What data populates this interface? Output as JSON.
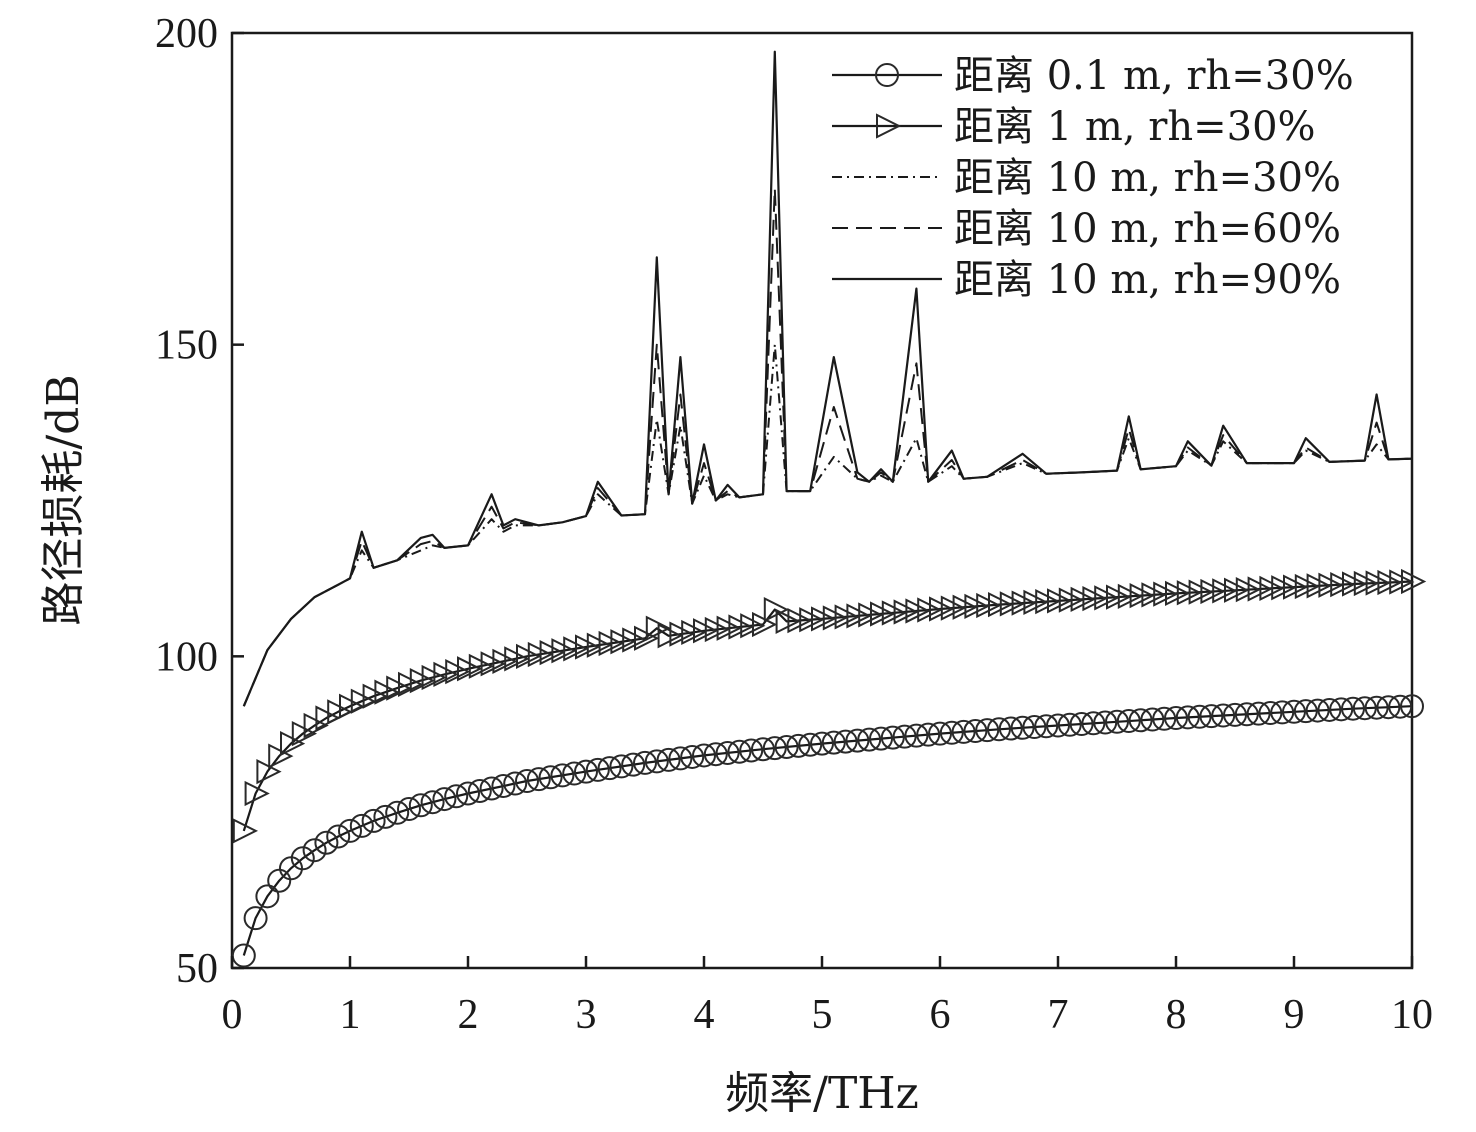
{
  "chart_data": {
    "type": "line",
    "title": "",
    "xlabel": "频率/THz",
    "ylabel": "路径损耗/dB",
    "xlim": [
      0,
      10
    ],
    "ylim": [
      50,
      200
    ],
    "xticks": [
      0,
      1,
      2,
      3,
      4,
      5,
      6,
      7,
      8,
      9,
      10
    ],
    "yticks": [
      50,
      100,
      150,
      200
    ],
    "grid": false,
    "legend_position": "top-right",
    "series": [
      {
        "name": "距离 0.1 m, rh=30%",
        "style": "solid-circle-markers",
        "x": [
          0.1,
          0.2,
          0.3,
          0.4,
          0.5,
          0.6,
          0.7,
          0.8,
          0.9,
          1.0,
          1.2,
          1.4,
          1.6,
          1.8,
          2.0,
          2.5,
          3.0,
          3.5,
          4.0,
          4.5,
          5.0,
          5.5,
          6.0,
          6.5,
          7.0,
          7.5,
          8.0,
          8.5,
          9.0,
          9.5,
          10.0
        ],
        "y": [
          52.0,
          58.0,
          61.5,
          64.0,
          66.0,
          67.6,
          68.9,
          70.1,
          71.1,
          72.0,
          73.6,
          74.9,
          76.1,
          77.1,
          78.0,
          80.0,
          81.5,
          82.9,
          84.1,
          85.1,
          86.0,
          86.8,
          87.6,
          88.3,
          88.9,
          89.5,
          90.1,
          90.6,
          91.1,
          91.6,
          92.0
        ]
      },
      {
        "name": "距离 1 m, rh=30%",
        "style": "solid-triangle-markers",
        "x": [
          0.1,
          0.2,
          0.3,
          0.4,
          0.5,
          0.6,
          0.7,
          0.8,
          0.9,
          1.0,
          1.2,
          1.4,
          1.6,
          1.8,
          2.0,
          2.5,
          3.0,
          3.5,
          3.6,
          3.7,
          4.0,
          4.5,
          4.6,
          4.7,
          5.0,
          5.5,
          6.0,
          6.5,
          7.0,
          7.5,
          8.0,
          8.5,
          9.0,
          9.5,
          10.0
        ],
        "y": [
          72.0,
          78.0,
          81.5,
          84.0,
          86.0,
          87.6,
          88.9,
          90.1,
          91.1,
          92.0,
          93.6,
          94.9,
          96.1,
          97.1,
          98.0,
          100.0,
          101.5,
          102.9,
          104.5,
          103.3,
          104.1,
          105.1,
          107.5,
          105.6,
          106.0,
          106.8,
          107.6,
          108.3,
          108.9,
          109.5,
          110.1,
          110.6,
          111.1,
          111.6,
          112.0
        ]
      },
      {
        "name": "距离 10 m, rh=30%",
        "style": "dash-dot",
        "x": [
          0.1,
          0.3,
          0.5,
          0.7,
          0.9,
          1.0,
          1.1,
          1.2,
          1.4,
          1.6,
          1.7,
          1.8,
          2.0,
          2.2,
          2.3,
          2.4,
          2.6,
          2.8,
          3.0,
          3.1,
          3.3,
          3.5,
          3.6,
          3.7,
          3.8,
          3.9,
          4.0,
          4.1,
          4.2,
          4.3,
          4.5,
          4.6,
          4.7,
          4.9,
          5.1,
          5.3,
          5.4,
          5.5,
          5.6,
          5.8,
          5.9,
          6.1,
          6.2,
          6.4,
          6.7,
          6.9,
          7.2,
          7.5,
          7.6,
          7.7,
          8.0,
          8.1,
          8.3,
          8.4,
          8.6,
          9.0,
          9.1,
          9.3,
          9.6,
          9.7,
          9.8,
          10.0
        ],
        "y": [
          92,
          101,
          106,
          109.5,
          111.5,
          112.5,
          117,
          114.2,
          115.4,
          117,
          117.8,
          117.4,
          117.8,
          122,
          120,
          121,
          121,
          121.5,
          122.5,
          126,
          122.6,
          122.8,
          138,
          126,
          137,
          124.5,
          129,
          125,
          126,
          125.5,
          126,
          150,
          126.5,
          126.5,
          132,
          128.5,
          128,
          129,
          128,
          135,
          128,
          130.5,
          128.5,
          128.8,
          131,
          129.3,
          129.5,
          129.8,
          135,
          130,
          130.5,
          133,
          130.6,
          134.5,
          131,
          131,
          133,
          131.2,
          131.4,
          134,
          131.6,
          131.7
        ]
      },
      {
        "name": "距离 10 m, rh=60%",
        "style": "dashed",
        "x": [
          0.1,
          0.3,
          0.5,
          0.7,
          0.9,
          1.0,
          1.1,
          1.2,
          1.4,
          1.6,
          1.7,
          1.8,
          2.0,
          2.2,
          2.3,
          2.4,
          2.6,
          2.8,
          3.0,
          3.1,
          3.3,
          3.5,
          3.6,
          3.7,
          3.8,
          3.9,
          4.0,
          4.1,
          4.2,
          4.3,
          4.5,
          4.6,
          4.7,
          4.9,
          5.1,
          5.3,
          5.4,
          5.5,
          5.6,
          5.8,
          5.9,
          6.1,
          6.2,
          6.4,
          6.7,
          6.9,
          7.2,
          7.5,
          7.6,
          7.7,
          8.0,
          8.1,
          8.3,
          8.4,
          8.6,
          9.0,
          9.1,
          9.3,
          9.6,
          9.7,
          9.8,
          10.0
        ],
        "y": [
          92,
          101,
          106,
          109.5,
          111.5,
          112.5,
          118.5,
          114.2,
          115.4,
          118,
          118.5,
          117.4,
          117.8,
          124,
          120.5,
          121.5,
          121,
          121.5,
          122.5,
          127,
          122.6,
          122.8,
          150,
          126,
          142,
          124.5,
          131,
          125,
          126.5,
          125.5,
          126,
          175,
          126.5,
          126.5,
          140,
          128.5,
          128,
          129.5,
          128,
          147,
          128,
          131.5,
          128.5,
          128.8,
          131.5,
          129.3,
          129.5,
          129.8,
          136.5,
          130,
          130.5,
          133.5,
          130.6,
          135.5,
          131,
          131,
          133.5,
          131.2,
          131.4,
          137.5,
          131.6,
          131.7
        ]
      },
      {
        "name": "距离 10 m, rh=90%",
        "style": "solid",
        "x": [
          0.1,
          0.3,
          0.5,
          0.7,
          0.9,
          1.0,
          1.1,
          1.2,
          1.4,
          1.6,
          1.7,
          1.8,
          2.0,
          2.2,
          2.3,
          2.4,
          2.6,
          2.8,
          3.0,
          3.1,
          3.3,
          3.5,
          3.6,
          3.7,
          3.8,
          3.9,
          4.0,
          4.1,
          4.2,
          4.3,
          4.5,
          4.6,
          4.7,
          4.9,
          5.1,
          5.3,
          5.4,
          5.5,
          5.6,
          5.8,
          5.9,
          6.1,
          6.2,
          6.4,
          6.7,
          6.9,
          7.2,
          7.5,
          7.6,
          7.7,
          8.0,
          8.1,
          8.3,
          8.4,
          8.6,
          9.0,
          9.1,
          9.3,
          9.6,
          9.7,
          9.8,
          10.0
        ],
        "y": [
          92,
          101,
          106,
          109.5,
          111.5,
          112.5,
          120,
          114.2,
          115.4,
          119,
          119.5,
          117.4,
          117.8,
          126,
          121,
          122,
          121,
          121.5,
          122.5,
          128,
          122.6,
          122.8,
          164,
          126,
          148,
          124.5,
          134,
          125,
          127.5,
          125.5,
          126,
          197,
          126.5,
          126.5,
          148,
          129.5,
          128,
          130,
          128,
          159,
          128,
          133,
          128.5,
          128.8,
          132.5,
          129.3,
          129.5,
          129.8,
          138.5,
          130,
          130.5,
          134.5,
          130.6,
          137,
          131,
          131,
          135,
          131.2,
          131.4,
          142,
          131.6,
          131.7
        ]
      }
    ]
  }
}
